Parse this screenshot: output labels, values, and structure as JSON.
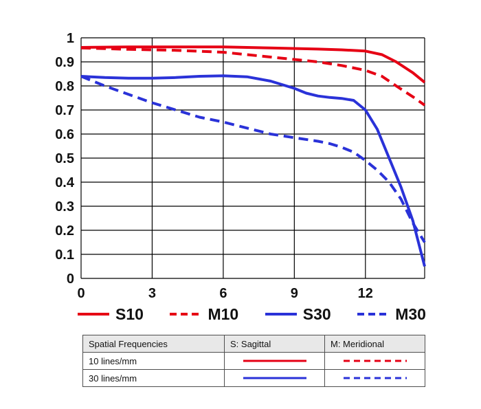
{
  "colors": {
    "red": "#e60014",
    "blue": "#2a32d8",
    "grid": "#000000",
    "table_border": "#4d4d4d",
    "table_header_bg": "#e8e8e8"
  },
  "chart_data": {
    "type": "line",
    "title": "",
    "xlabel": "",
    "ylabel": "",
    "xlim": [
      0,
      14.5
    ],
    "ylim": [
      0,
      1
    ],
    "grid": true,
    "x_ticks": [
      0,
      3,
      6,
      9,
      12
    ],
    "x_tick_labels": [
      "0",
      "3",
      "6",
      "9",
      "12"
    ],
    "x_gridlines": [
      0,
      3,
      6,
      9,
      12,
      14.5
    ],
    "y_ticks": [
      0,
      0.1,
      0.2,
      0.3,
      0.4,
      0.5,
      0.6,
      0.7,
      0.8,
      0.9,
      1
    ],
    "y_tick_labels": [
      "0",
      "0.1",
      "0.2",
      "0.3",
      "0.4",
      "0.5",
      "0.6",
      "0.7",
      "0.8",
      "0.9",
      "1"
    ],
    "legend_position": "bottom",
    "series": [
      {
        "name": "S10",
        "color": "red",
        "style": "solid",
        "points": [
          [
            0,
            0.96
          ],
          [
            2,
            0.962
          ],
          [
            4,
            0.962
          ],
          [
            6,
            0.962
          ],
          [
            8,
            0.958
          ],
          [
            10,
            0.953
          ],
          [
            11,
            0.95
          ],
          [
            12,
            0.945
          ],
          [
            12.7,
            0.93
          ],
          [
            13.3,
            0.9
          ],
          [
            14,
            0.855
          ],
          [
            14.5,
            0.815
          ]
        ]
      },
      {
        "name": "M10",
        "color": "red",
        "style": "dashed",
        "points": [
          [
            0,
            0.958
          ],
          [
            2,
            0.952
          ],
          [
            4,
            0.948
          ],
          [
            6,
            0.94
          ],
          [
            8,
            0.92
          ],
          [
            9,
            0.91
          ],
          [
            10,
            0.9
          ],
          [
            11,
            0.885
          ],
          [
            12,
            0.865
          ],
          [
            12.7,
            0.84
          ],
          [
            13.3,
            0.8
          ],
          [
            14,
            0.755
          ],
          [
            14.5,
            0.72
          ]
        ]
      },
      {
        "name": "S30",
        "color": "blue",
        "style": "solid",
        "points": [
          [
            0,
            0.84
          ],
          [
            1,
            0.835
          ],
          [
            2,
            0.832
          ],
          [
            3,
            0.832
          ],
          [
            4,
            0.835
          ],
          [
            5,
            0.84
          ],
          [
            6,
            0.842
          ],
          [
            7,
            0.838
          ],
          [
            8,
            0.82
          ],
          [
            9,
            0.79
          ],
          [
            9.5,
            0.77
          ],
          [
            10,
            0.758
          ],
          [
            10.5,
            0.752
          ],
          [
            11,
            0.748
          ],
          [
            11.5,
            0.74
          ],
          [
            12,
            0.7
          ],
          [
            12.5,
            0.62
          ],
          [
            13,
            0.5
          ],
          [
            13.5,
            0.38
          ],
          [
            14,
            0.24
          ],
          [
            14.5,
            0.05
          ]
        ]
      },
      {
        "name": "M30",
        "color": "blue",
        "style": "dashed",
        "points": [
          [
            0,
            0.84
          ],
          [
            0.5,
            0.82
          ],
          [
            1,
            0.8
          ],
          [
            2,
            0.765
          ],
          [
            3,
            0.73
          ],
          [
            4,
            0.7
          ],
          [
            5,
            0.67
          ],
          [
            6,
            0.65
          ],
          [
            7,
            0.625
          ],
          [
            8,
            0.6
          ],
          [
            9,
            0.585
          ],
          [
            10,
            0.57
          ],
          [
            10.5,
            0.56
          ],
          [
            11,
            0.545
          ],
          [
            11.5,
            0.525
          ],
          [
            12,
            0.49
          ],
          [
            12.5,
            0.45
          ],
          [
            13,
            0.4
          ],
          [
            13.5,
            0.33
          ],
          [
            14,
            0.23
          ],
          [
            14.5,
            0.15
          ]
        ]
      }
    ]
  },
  "legend": {
    "items": [
      {
        "label": "S10",
        "color": "red",
        "style": "solid"
      },
      {
        "label": "M10",
        "color": "red",
        "style": "dashed"
      },
      {
        "label": "S30",
        "color": "blue",
        "style": "solid"
      },
      {
        "label": "M30",
        "color": "blue",
        "style": "dashed"
      }
    ]
  },
  "table": {
    "headers": [
      "Spatial Frequencies",
      "S: Sagittal",
      "M: Meridional"
    ],
    "rows": [
      {
        "label": "10 lines/mm",
        "color": "red"
      },
      {
        "label": "30 lines/mm",
        "color": "blue"
      }
    ]
  }
}
